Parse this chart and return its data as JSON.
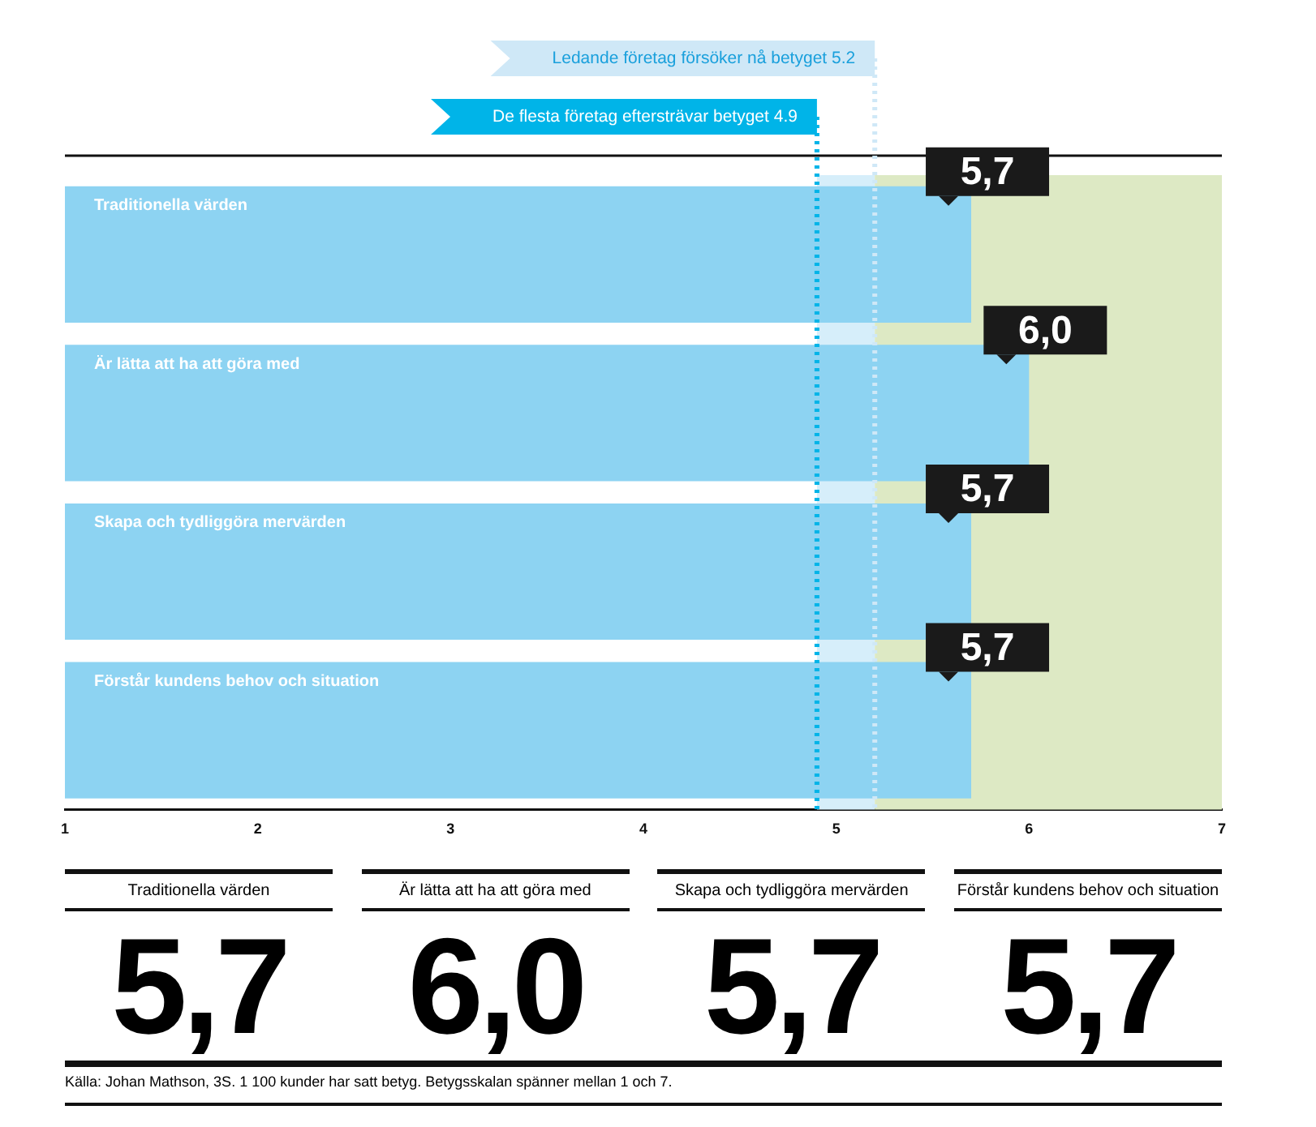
{
  "chart_data": {
    "type": "bar",
    "orientation": "horizontal",
    "categories": [
      "Traditionella värden",
      "Är lätta att ha att göra med",
      "Skapa och tydliggöra mervärden",
      "Förstår kundens behov och situation"
    ],
    "values": [
      5.7,
      6.0,
      5.7,
      5.7
    ],
    "color": "#8dd3f2",
    "value_labels": [
      "5,7",
      "6,0",
      "5,7",
      "5,7"
    ],
    "xlim": [
      1,
      7
    ],
    "xticks": [
      1,
      2,
      3,
      4,
      5,
      6,
      7
    ],
    "grid": false,
    "legend": false,
    "ref_lines": [
      {
        "axis": "x",
        "value": 4.9,
        "label": "De flesta företag eftersträvar betyget 4.9",
        "color": "#00b4e8",
        "line_style": "dotted"
      },
      {
        "axis": "x",
        "value": 5.2,
        "label": "Ledande företag försöker nå betyget 5.2",
        "color": "#cfe8f7",
        "line_style": "dotted"
      }
    ],
    "bands": [
      {
        "axis": "x",
        "from": 4.9,
        "to": 5.2,
        "color": "#d6eefa"
      },
      {
        "axis": "x",
        "from": 5.2,
        "to": 7,
        "color": "#dde9c4"
      }
    ],
    "annotations": [
      "Källa: Johan Mathson, 3S. 1 100 kunder har satt betyg. Betygsskalan spänner mellan 1 och 7."
    ]
  }
}
